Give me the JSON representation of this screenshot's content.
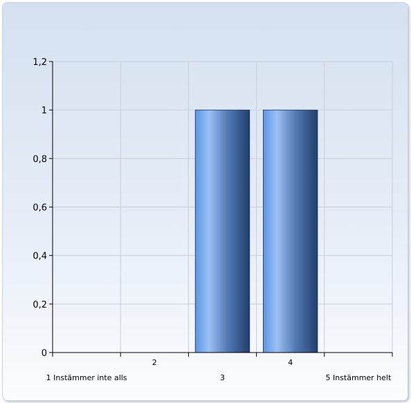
{
  "chart_data": {
    "type": "bar",
    "title": "",
    "xlabel": "",
    "ylabel": "",
    "categories": [
      "1 Instämmer inte alls",
      "2",
      "3",
      "4",
      "5 Instämmer helt"
    ],
    "values": [
      0,
      0,
      1,
      1,
      0
    ],
    "ylim": [
      0,
      1.2
    ],
    "yticks": [
      "0",
      "0,2",
      "0,4",
      "0,6",
      "0,8",
      "1",
      "1,2"
    ],
    "grid": true,
    "legend": "none",
    "colors": {
      "bar_light": "#9cc1f4",
      "bar_mid": "#5b95e6",
      "bar_dark": "#213f6b",
      "grid": "#c8ced8",
      "axis": "#000000"
    }
  }
}
